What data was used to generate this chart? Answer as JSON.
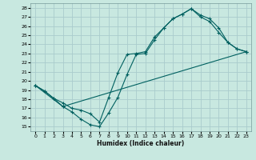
{
  "xlabel": "Humidex (Indice chaleur)",
  "xlim": [
    -0.5,
    23.5
  ],
  "ylim": [
    14.5,
    28.5
  ],
  "yticks": [
    15,
    16,
    17,
    18,
    19,
    20,
    21,
    22,
    23,
    24,
    25,
    26,
    27,
    28
  ],
  "xticks": [
    0,
    1,
    2,
    3,
    4,
    5,
    6,
    7,
    8,
    9,
    10,
    11,
    12,
    13,
    14,
    15,
    16,
    17,
    18,
    19,
    20,
    21,
    22,
    23
  ],
  "bg_color": "#c8e8e0",
  "grid_color": "#aacccc",
  "line_color": "#006060",
  "line1_x": [
    0,
    1,
    2,
    3,
    4,
    5,
    6,
    7,
    8,
    9,
    10,
    11,
    12,
    13,
    14,
    15,
    16,
    17,
    18,
    19,
    20,
    21,
    22,
    23
  ],
  "line1_y": [
    19.5,
    18.9,
    18.1,
    17.2,
    16.6,
    15.8,
    15.2,
    15.0,
    16.5,
    18.2,
    20.7,
    22.9,
    23.0,
    24.5,
    25.8,
    26.8,
    27.3,
    27.9,
    27.2,
    26.8,
    25.8,
    24.2,
    23.5,
    23.2
  ],
  "line2_x": [
    0,
    3,
    23
  ],
  "line2_y": [
    19.5,
    17.2,
    23.2
  ],
  "line3_x": [
    0,
    1,
    2,
    3,
    4,
    5,
    6,
    7,
    8,
    9,
    10,
    11,
    12,
    13,
    14,
    15,
    16,
    17,
    18,
    19,
    20,
    21,
    22,
    23
  ],
  "line3_y": [
    19.5,
    18.9,
    18.1,
    17.6,
    17.0,
    16.8,
    16.4,
    15.5,
    18.2,
    20.9,
    22.9,
    23.0,
    23.2,
    24.8,
    25.8,
    26.8,
    27.3,
    27.9,
    27.0,
    26.5,
    25.3,
    24.2,
    23.5,
    23.2
  ]
}
